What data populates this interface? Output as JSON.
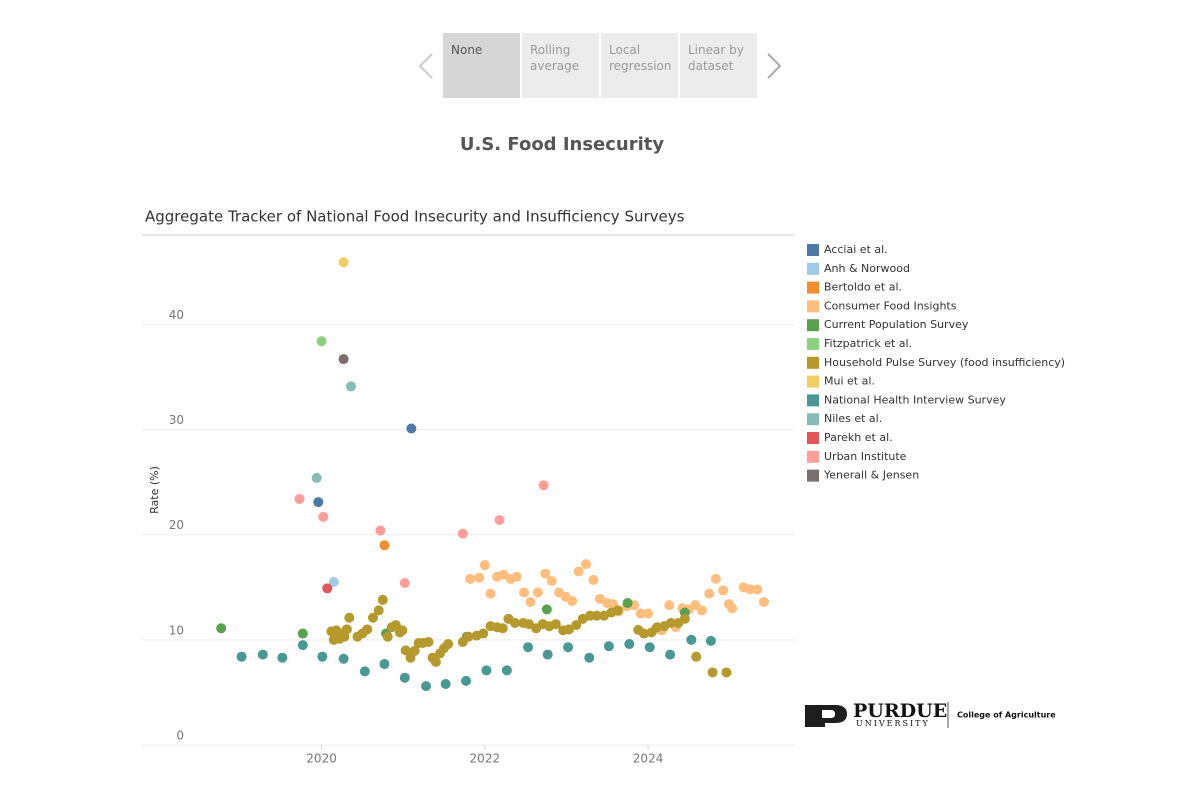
{
  "tabs": [
    "None",
    "Rolling average",
    "Local regression",
    "Linear by dataset"
  ],
  "header": {
    "title": "U.S. Food Insecurity"
  },
  "logo": {
    "name": "PURDUE",
    "sub": "UNIVERSITY",
    "unit": "College of Agriculture"
  },
  "chart_data": {
    "type": "scatter",
    "title": "Aggregate Tracker of National Food Insecurity and Insufficiency Surveys",
    "y_label": "Rate (%)",
    "xlim": [
      2017.8,
      2025.8
    ],
    "xticks": [
      2020,
      2022,
      2024
    ],
    "ylim": [
      0,
      48.5
    ],
    "yticks": [
      0,
      10,
      20,
      30,
      40
    ],
    "grid": true,
    "legend": "right",
    "series": [
      {
        "name": "Acciai et al.",
        "color": "#4e79a7",
        "x": [
          2019.96,
          2021.1
        ],
        "values": [
          23.1,
          30.1
        ]
      },
      {
        "name": "Anh & Norwood",
        "color": "#a0cbe8",
        "x": [
          2020.15
        ],
        "values": [
          15.5
        ]
      },
      {
        "name": "Bertoldo et al.",
        "color": "#f28e2b",
        "x": [
          2020.77
        ],
        "values": [
          19.0
        ]
      },
      {
        "name": "Consumer Food Insights",
        "color": "#ffbe7d",
        "x": [
          2021.82,
          2021.93,
          2022.0,
          2022.07,
          2022.15,
          2022.23,
          2022.32,
          2022.39,
          2022.48,
          2022.56,
          2022.65,
          2022.74,
          2022.82,
          2022.91,
          2022.99,
          2023.07,
          2023.15,
          2023.24,
          2023.33,
          2023.41,
          2023.5,
          2023.57,
          2023.64,
          2023.74,
          2023.83,
          2023.91,
          2024.0,
          2024.09,
          2024.17,
          2024.26,
          2024.34,
          2024.42,
          2024.5,
          2024.58,
          2024.66,
          2024.75,
          2024.83,
          2024.92,
          2024.99,
          2025.03,
          2025.17,
          2025.25,
          2025.34,
          2025.42
        ],
        "values": [
          15.8,
          15.9,
          17.1,
          14.4,
          16.0,
          16.2,
          15.8,
          16.0,
          14.5,
          13.6,
          14.5,
          16.3,
          15.6,
          14.5,
          14.1,
          13.7,
          16.5,
          17.2,
          15.7,
          13.9,
          13.5,
          13.4,
          12.7,
          13.2,
          13.3,
          12.5,
          12.5,
          11.0,
          10.9,
          13.3,
          11.2,
          13.0,
          12.9,
          13.3,
          12.8,
          14.4,
          15.8,
          14.7,
          13.4,
          13.0,
          15.0,
          14.8,
          14.8,
          13.6
        ]
      },
      {
        "name": "Current Population Survey",
        "color": "#59a14f",
        "x": [
          2018.77,
          2019.77,
          2020.79,
          2021.78,
          2022.76,
          2023.75,
          2024.45
        ],
        "values": [
          11.1,
          10.6,
          10.6,
          10.3,
          12.9,
          13.5,
          12.6
        ]
      },
      {
        "name": "Fitzpatrick et al.",
        "color": "#8cd17d",
        "x": [
          2020.0
        ],
        "values": [
          38.4
        ]
      },
      {
        "name": "Household Pulse Survey (food insufficiency)",
        "color": "#b6992d",
        "x": [
          2020.12,
          2020.15,
          2020.18,
          2020.22,
          2020.25,
          2020.28,
          2020.31,
          2020.34,
          2020.44,
          2020.5,
          2020.56,
          2020.63,
          2020.7,
          2020.75,
          2020.81,
          2020.86,
          2020.91,
          2020.96,
          2020.99,
          2021.03,
          2021.09,
          2021.14,
          2021.19,
          2021.24,
          2021.31,
          2021.36,
          2021.4,
          2021.45,
          2021.5,
          2021.55,
          2021.73,
          2021.8,
          2021.9,
          2021.98,
          2022.07,
          2022.15,
          2022.22,
          2022.29,
          2022.37,
          2022.47,
          2022.54,
          2022.63,
          2022.71,
          2022.79,
          2022.87,
          2022.96,
          2023.03,
          2023.12,
          2023.2,
          2023.29,
          2023.37,
          2023.46,
          2023.55,
          2023.63,
          2023.88,
          2023.95,
          2024.04,
          2024.11,
          2024.2,
          2024.28,
          2024.37,
          2024.45,
          2024.59,
          2024.79,
          2024.96
        ],
        "values": [
          10.8,
          10.0,
          10.9,
          10.1,
          10.6,
          10.3,
          11.0,
          12.1,
          10.3,
          10.6,
          11.0,
          12.1,
          12.8,
          13.8,
          10.3,
          11.2,
          11.4,
          10.7,
          10.9,
          9.0,
          8.3,
          8.95,
          9.7,
          9.7,
          9.8,
          8.3,
          7.9,
          8.7,
          9.2,
          9.6,
          9.8,
          10.3,
          10.4,
          10.6,
          11.3,
          11.2,
          11.1,
          12.0,
          11.6,
          11.6,
          11.5,
          11.1,
          11.5,
          11.3,
          11.5,
          10.9,
          11.0,
          11.4,
          12.0,
          12.3,
          12.3,
          12.3,
          12.6,
          12.8,
          10.95,
          10.6,
          10.7,
          11.2,
          11.3,
          11.6,
          11.6,
          12.0,
          8.4,
          6.9,
          6.9
        ]
      },
      {
        "name": "Mui et al.",
        "color": "#f1ce63",
        "x": [
          2020.27
        ],
        "values": [
          45.9
        ]
      },
      {
        "name": "National Health Interview Survey",
        "color": "#499894",
        "x": [
          2019.02,
          2019.28,
          2019.52,
          2019.77,
          2020.01,
          2020.27,
          2020.53,
          2020.77,
          2021.02,
          2021.28,
          2021.52,
          2021.77,
          2022.02,
          2022.27,
          2022.53,
          2022.77,
          2023.02,
          2023.28,
          2023.52,
          2023.77,
          2024.02,
          2024.27,
          2024.53,
          2024.77
        ],
        "values": [
          8.4,
          8.6,
          8.3,
          9.5,
          8.4,
          8.2,
          7.0,
          7.7,
          6.4,
          5.6,
          5.8,
          6.1,
          7.1,
          7.1,
          9.3,
          8.6,
          9.3,
          8.3,
          9.4,
          9.6,
          9.3,
          8.6,
          10.0,
          9.9
        ]
      },
      {
        "name": "Niles et al.",
        "color": "#86bcb6",
        "x": [
          2019.94,
          2020.36
        ],
        "values": [
          25.4,
          34.1
        ]
      },
      {
        "name": "Parekh et al.",
        "color": "#e15759",
        "x": [
          2020.07
        ],
        "values": [
          14.9
        ]
      },
      {
        "name": "Urban Institute",
        "color": "#ff9d9a",
        "x": [
          2019.73,
          2020.02,
          2020.72,
          2021.02,
          2021.73,
          2022.18,
          2022.72
        ],
        "values": [
          23.4,
          21.7,
          20.4,
          15.4,
          20.1,
          21.4,
          24.7
        ]
      },
      {
        "name": "Yenerall & Jensen",
        "color": "#79706e",
        "x": [
          2020.27
        ],
        "values": [
          36.7
        ]
      }
    ]
  }
}
